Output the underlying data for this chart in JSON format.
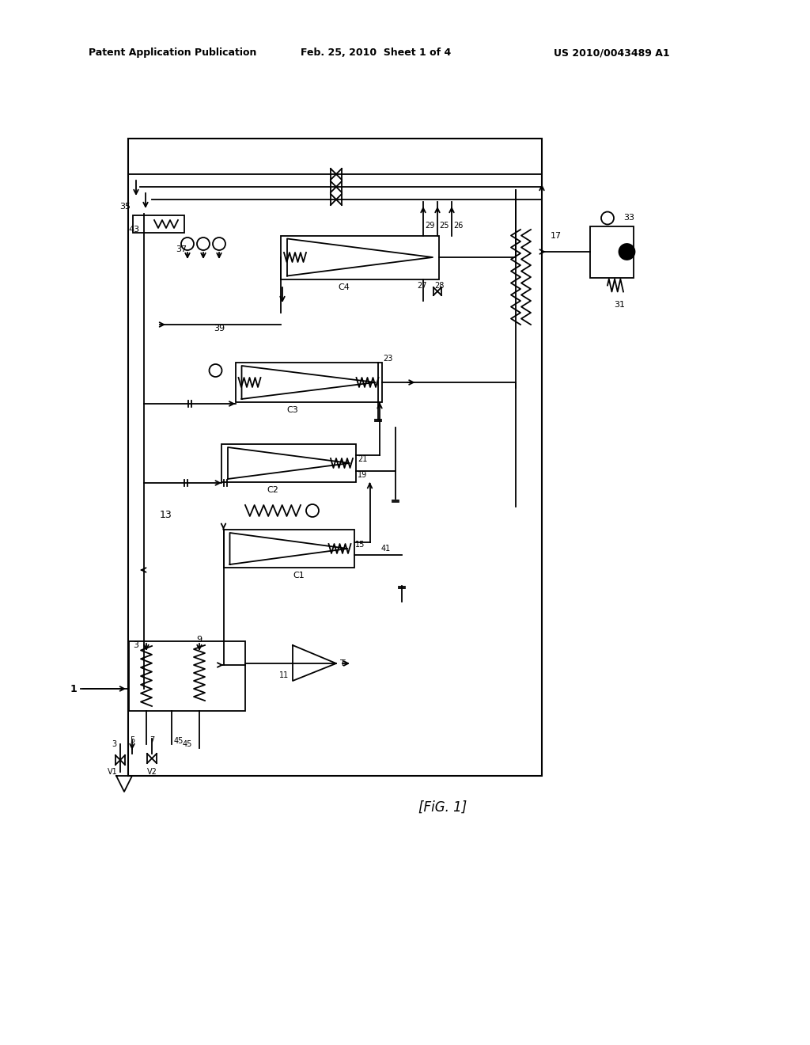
{
  "bg_color": "#ffffff",
  "line_color": "#000000",
  "header_left": "Patent Application Publication",
  "header_mid": "Feb. 25, 2010  Sheet 1 of 4",
  "header_right": "US 2010/0043489 A1",
  "fig_label": "[FiG. 1]"
}
